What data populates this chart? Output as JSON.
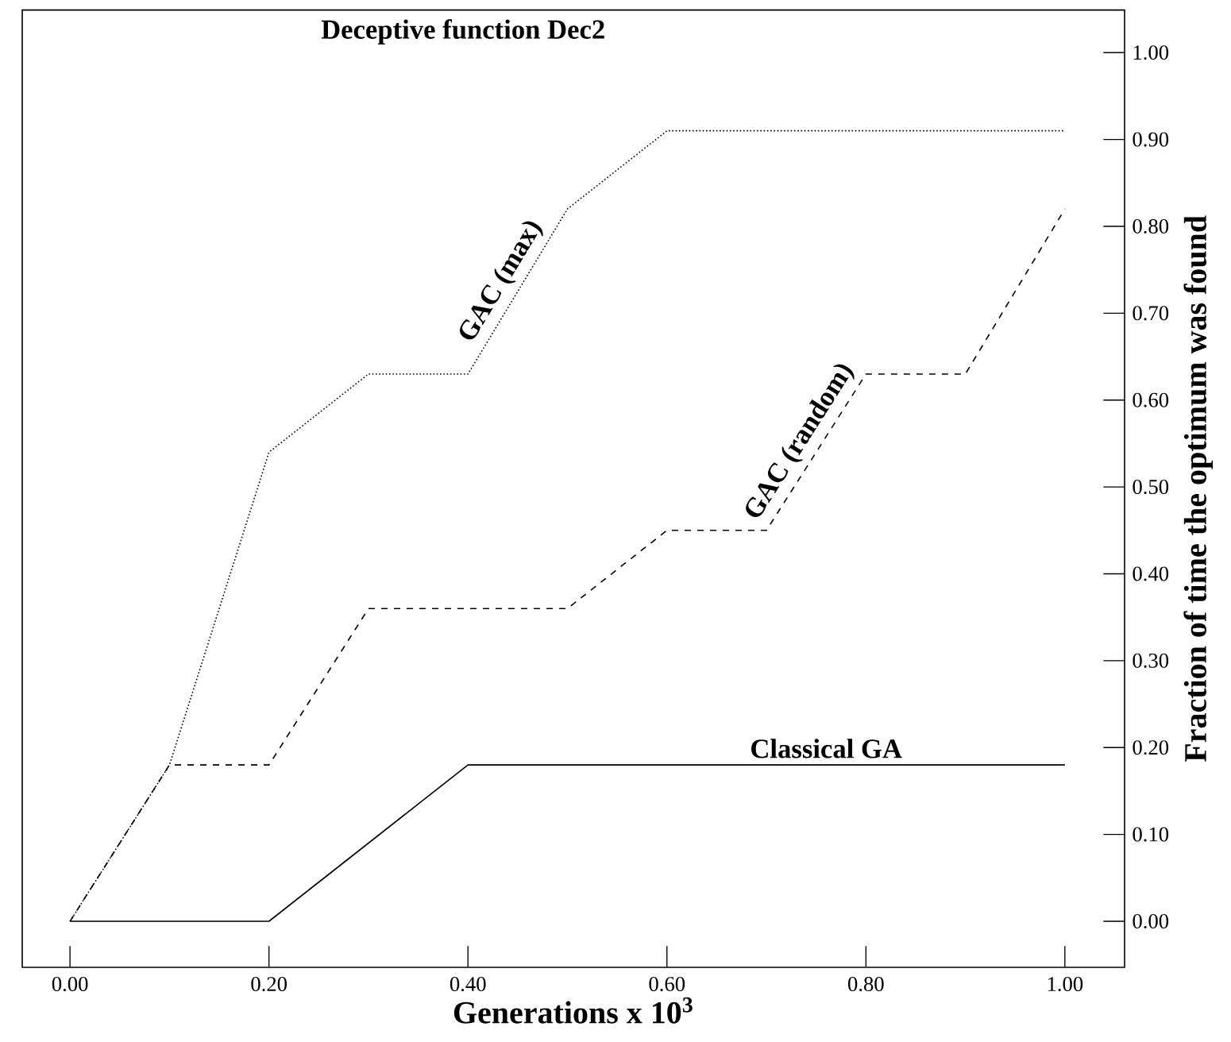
{
  "chart_data": {
    "type": "line",
    "title": "Deceptive function Dec2",
    "xlabel": "Generations  x 10$^{3}$",
    "ylabel": "Fraction of time the optimum was found",
    "xlim": [
      -0.048,
      1.06
    ],
    "ylim": [
      -0.053,
      1.049
    ],
    "xticks": [
      {
        "value": 0,
        "label": "0.00"
      },
      {
        "value": 0.2,
        "label": "0.20"
      },
      {
        "value": 0.4,
        "label": "0.40"
      },
      {
        "value": 0.6,
        "label": "0.60"
      },
      {
        "value": 0.8,
        "label": "0.80"
      },
      {
        "value": 1.0,
        "label": "1.00"
      }
    ],
    "yticks": [
      {
        "value": 0,
        "label": "0.00"
      },
      {
        "value": 0.1,
        "label": "0.10"
      },
      {
        "value": 0.2,
        "label": "0.20"
      },
      {
        "value": 0.3,
        "label": "0.30"
      },
      {
        "value": 0.4,
        "label": "0.40"
      },
      {
        "value": 0.5,
        "label": "0.50"
      },
      {
        "value": 0.6,
        "label": "0.60"
      },
      {
        "value": 0.7,
        "label": "0.70"
      },
      {
        "value": 0.8,
        "label": "0.80"
      },
      {
        "value": 0.9,
        "label": "0.90"
      },
      {
        "value": 1.0,
        "label": "1.00"
      }
    ],
    "grid": false,
    "legend": false,
    "marker": "none",
    "series": [
      {
        "name": "Classical GA",
        "color": "#000000",
        "line_style": "solid",
        "x": [
          0,
          0.2,
          0.4,
          1.0
        ],
        "values": [
          0,
          0,
          0.18,
          0.18
        ]
      },
      {
        "name": "GAC (max)",
        "color": "#000000",
        "line_style": "dotted",
        "x": [
          0,
          0.1,
          0.2,
          0.3,
          0.4,
          0.5,
          0.6,
          1.0
        ],
        "values": [
          0,
          0.18,
          0.54,
          0.63,
          0.63,
          0.82,
          0.91,
          0.91
        ]
      },
      {
        "name": "GAC (random)",
        "color": "#000000",
        "line_style": "dashed",
        "x": [
          0,
          0.1,
          0.2,
          0.3,
          0.5,
          0.6,
          0.7,
          0.8,
          0.9,
          1.0
        ],
        "values": [
          0,
          0.18,
          0.18,
          0.36,
          0.36,
          0.45,
          0.45,
          0.63,
          0.63,
          0.82
        ]
      }
    ]
  }
}
